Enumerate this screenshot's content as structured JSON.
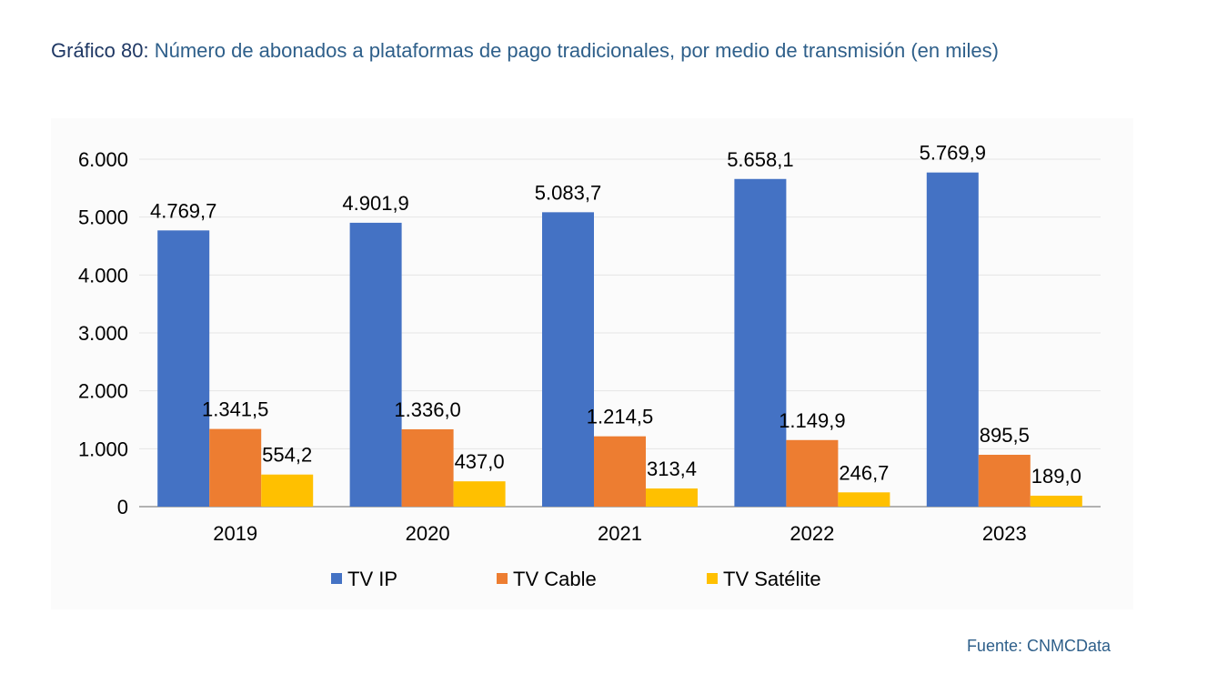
{
  "title": {
    "label": "Gráfico 80:",
    "text": "Número de abonados a plataformas de pago tradicionales, por medio de transmisión (en miles)"
  },
  "source": "Fuente: CNMCData",
  "colors": {
    "tv_ip": "#4472c4",
    "tv_cable": "#ed7d31",
    "tv_satelite": "#ffc000",
    "grid": "#e6e6e6",
    "axis": "#999999"
  },
  "chart_data": {
    "type": "bar",
    "title": "Número de abonados a plataformas de pago tradicionales, por medio de transmisión (en miles)",
    "xlabel": "",
    "ylabel": "",
    "ylim": [
      0,
      6000
    ],
    "yticks": [
      0,
      1000,
      2000,
      3000,
      4000,
      5000,
      6000
    ],
    "ytick_labels": [
      "0",
      "1.000",
      "2.000",
      "3.000",
      "4.000",
      "5.000",
      "6.000"
    ],
    "categories": [
      "2019",
      "2020",
      "2021",
      "2022",
      "2023"
    ],
    "legend_position": "bottom",
    "grid": true,
    "series": [
      {
        "name": "TV IP",
        "color": "#4472c4",
        "values": [
          4769.7,
          4901.9,
          5083.7,
          5658.1,
          5769.9
        ],
        "labels": [
          "4.769,7",
          "4.901,9",
          "5.083,7",
          "5.658,1",
          "5.769,9"
        ]
      },
      {
        "name": "TV Cable",
        "color": "#ed7d31",
        "values": [
          1341.5,
          1336.0,
          1214.5,
          1149.9,
          895.5
        ],
        "labels": [
          "1.341,5",
          "1.336,0",
          "1.214,5",
          "1.149,9",
          "895,5"
        ]
      },
      {
        "name": "TV Satélite",
        "color": "#ffc000",
        "values": [
          554.2,
          437.0,
          313.4,
          246.7,
          189.0
        ],
        "labels": [
          "554,2",
          "437,0",
          "313,4",
          "246,7",
          "189,0"
        ]
      }
    ]
  }
}
